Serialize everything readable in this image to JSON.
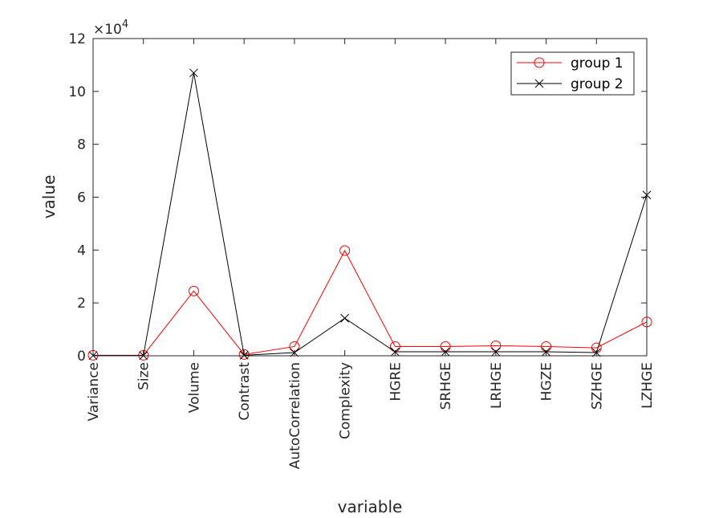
{
  "chart_data": {
    "type": "line",
    "title": "",
    "xlabel": "variable",
    "ylabel": "value",
    "y_exponent_base": "×10",
    "y_exponent_power": "4",
    "ylim": [
      0,
      12
    ],
    "yticks": [
      "0",
      "2",
      "4",
      "6",
      "8",
      "10",
      "12"
    ],
    "categories": [
      "Variance",
      "Size",
      "Volume",
      "Contrast",
      "AutoCorrelation",
      "Complexity",
      "HGRE",
      "SRHGE",
      "LRHGE",
      "HGZE",
      "SZHGE",
      "LZHGE"
    ],
    "series": [
      {
        "name": "group 1",
        "color": "#ff0000",
        "marker": "circle",
        "values": [
          0.02,
          0.02,
          2.45,
          0.05,
          0.35,
          3.98,
          0.35,
          0.35,
          0.38,
          0.35,
          0.3,
          1.28
        ]
      },
      {
        "name": "group 2",
        "color": "#000000",
        "marker": "x",
        "values": [
          0.01,
          0.01,
          10.7,
          0.02,
          0.12,
          1.42,
          0.15,
          0.15,
          0.15,
          0.15,
          0.12,
          6.08
        ]
      }
    ],
    "grid": false,
    "legend": "top-right"
  }
}
